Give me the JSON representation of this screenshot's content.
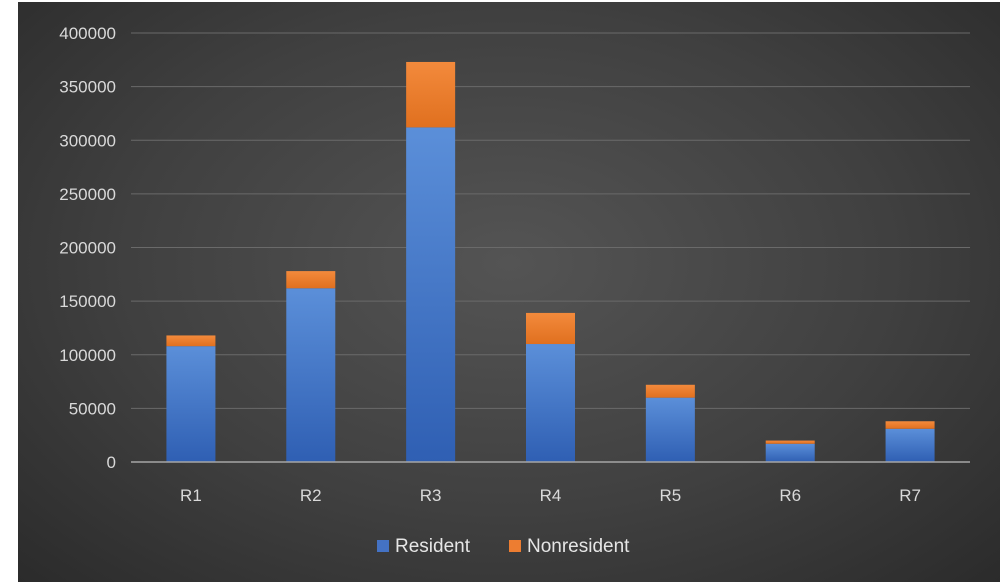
{
  "chart_data": {
    "type": "bar",
    "stacked": true,
    "categories": [
      "R1",
      "R2",
      "R3",
      "R4",
      "R5",
      "R6",
      "R7"
    ],
    "series": [
      {
        "name": "Resident",
        "color": "#4472c4",
        "values": [
          108000,
          162000,
          312000,
          110000,
          60000,
          17000,
          31000
        ]
      },
      {
        "name": "Nonresident",
        "color": "#ed7d31",
        "values": [
          10000,
          16000,
          61000,
          29000,
          12000,
          3000,
          7000
        ]
      }
    ],
    "y_ticks": [
      "0",
      "50000",
      "100000",
      "150000",
      "200000",
      "250000",
      "300000",
      "350000",
      "400000"
    ],
    "ylim": [
      0,
      400000
    ],
    "grid": true,
    "legend_position": "bottom",
    "title": "",
    "xlabel": "",
    "ylabel": ""
  }
}
